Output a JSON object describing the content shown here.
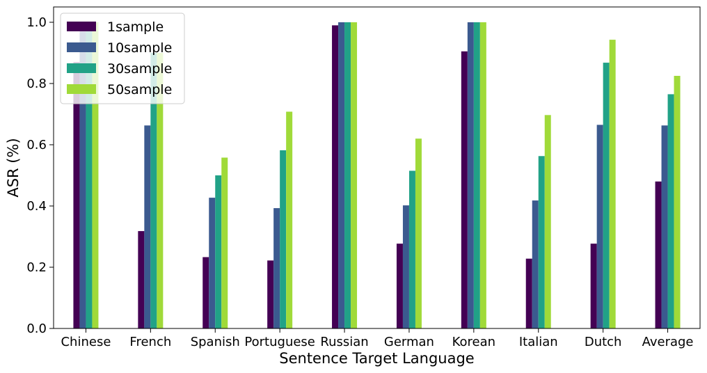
{
  "chart_data": {
    "type": "bar",
    "title": "",
    "xlabel": "Sentence Target Language",
    "ylabel": "ASR (%)",
    "ylim": [
      0,
      1.05
    ],
    "yticks": [
      0.0,
      0.2,
      0.4,
      0.6,
      0.8,
      1.0
    ],
    "ytick_labels": [
      "0.0",
      "0.2",
      "0.4",
      "0.6",
      "0.8",
      "1.0"
    ],
    "grid": false,
    "legend_position": "top-left",
    "categories": [
      "Chinese",
      "French",
      "Spanish",
      "Portuguese",
      "Russian",
      "German",
      "Korean",
      "Italian",
      "Dutch",
      "Average"
    ],
    "series": [
      {
        "name": "1sample",
        "color": "#440154",
        "values": [
          0.87,
          0.318,
          0.233,
          0.222,
          0.99,
          0.277,
          0.905,
          0.228,
          0.277,
          0.48
        ]
      },
      {
        "name": "10sample",
        "color": "#3b5a8f",
        "values": [
          0.97,
          0.663,
          0.427,
          0.393,
          1.0,
          0.402,
          1.0,
          0.418,
          0.665,
          0.663
        ]
      },
      {
        "name": "30sample",
        "color": "#21a287",
        "values": [
          1.0,
          0.9,
          0.5,
          0.582,
          1.0,
          0.515,
          1.0,
          0.563,
          0.868,
          0.765
        ]
      },
      {
        "name": "50sample",
        "color": "#a0da39",
        "values": [
          1.0,
          0.9,
          0.558,
          0.708,
          1.0,
          0.62,
          1.0,
          0.697,
          0.943,
          0.825
        ]
      }
    ]
  }
}
